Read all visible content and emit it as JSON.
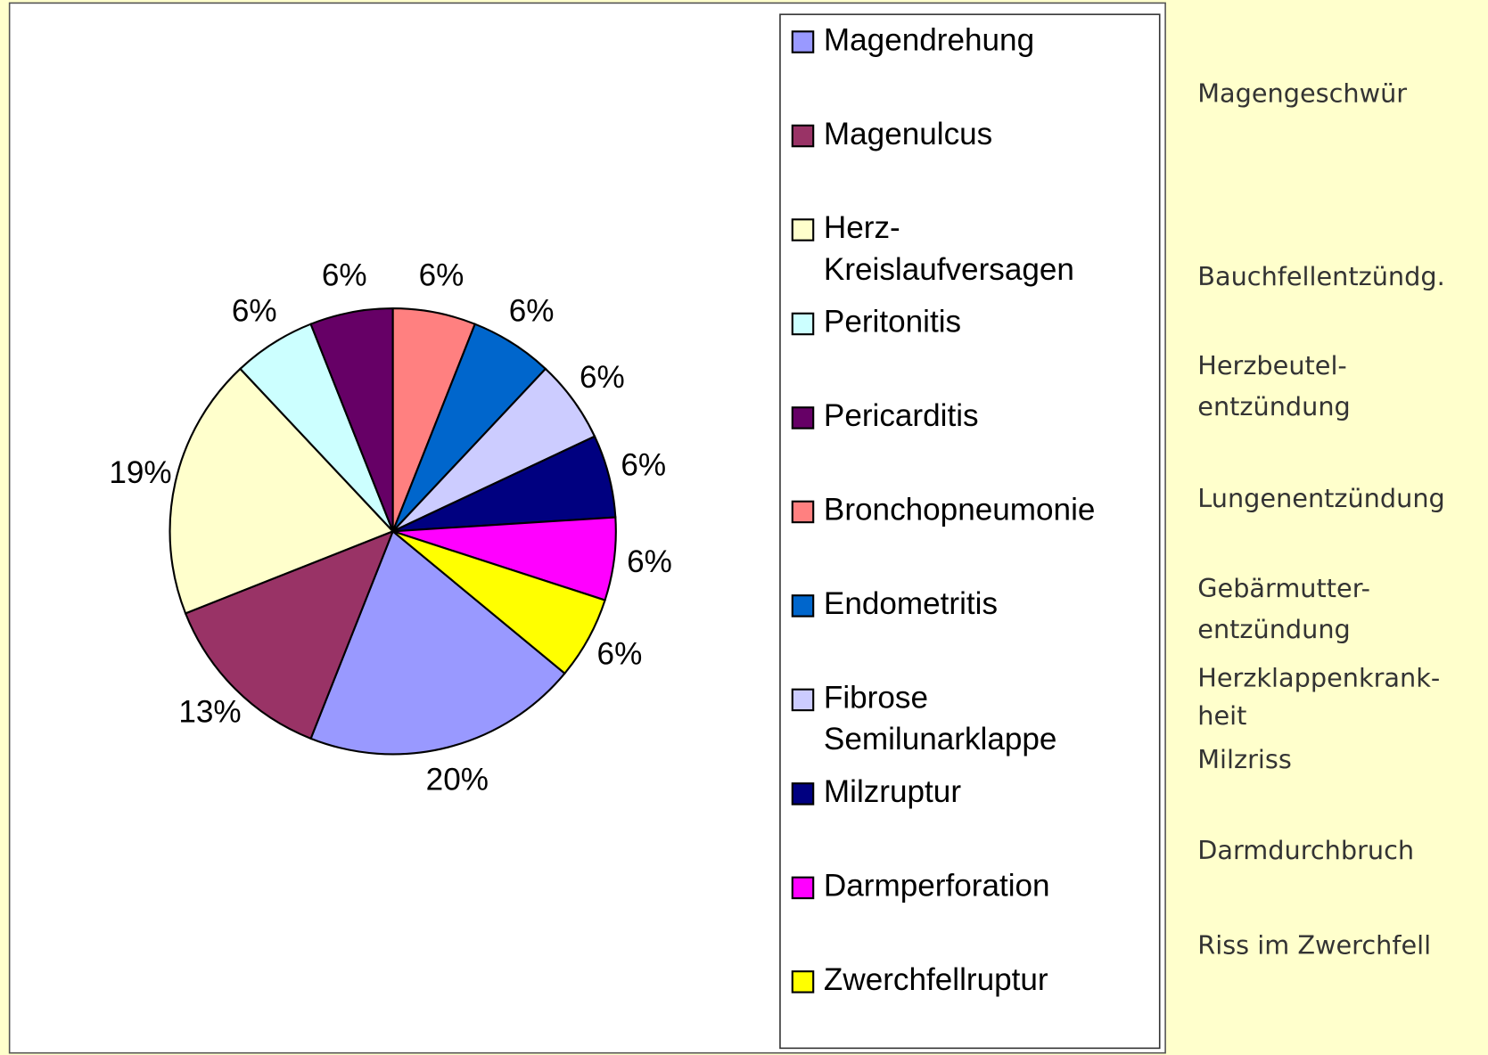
{
  "chart_data": {
    "type": "pie",
    "categories": [
      "Magendrehung",
      "Magenulcus",
      "Herz-\nKreislaufversagen",
      "Peritonitis",
      "Pericarditis",
      "Bronchopneumonie",
      "Endometritis",
      "Fibrose\nSemilunarklappe",
      "Milzruptur",
      "Darmperforation",
      "Zwerchfellruptur"
    ],
    "values": [
      20,
      13,
      19,
      6,
      6,
      6,
      6,
      6,
      6,
      6,
      6
    ],
    "value_labels": [
      "20%",
      "13%",
      "19%",
      "6%",
      "6%",
      "6%",
      "6%",
      "6%",
      "6%",
      "6%",
      "6%"
    ],
    "colors": [
      "#9999ff",
      "#993366",
      "#ffffcc",
      "#ccffff",
      "#660066",
      "#ff8080",
      "#0066cc",
      "#ccccff",
      "#000080",
      "#ff00ff",
      "#ffff00"
    ],
    "legend": "right"
  },
  "annotations": [
    "Magengeschwür",
    "Bauchfellentzündg.",
    "Herzbeutel-\nentzündung",
    "Lungenentzündung",
    "Gebärmutter-\nentzündung",
    "Herzklappenkrank-\nheit",
    "Milzriss",
    "Darmdurchbruch",
    "Riss im Zwerchfell"
  ]
}
